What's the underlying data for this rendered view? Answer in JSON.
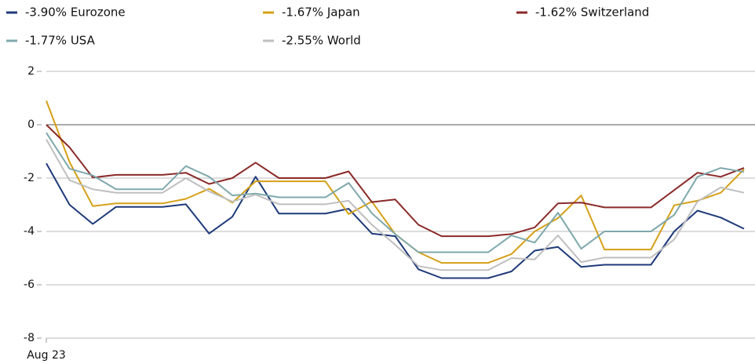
{
  "chart_data": {
    "type": "line",
    "categories": [
      "Aug 23",
      null,
      null,
      null,
      null,
      null,
      null,
      null,
      null,
      null,
      null,
      null,
      null,
      null,
      null,
      null,
      null,
      null,
      null,
      null,
      null,
      null,
      null,
      null,
      null,
      null,
      null,
      null,
      null,
      null,
      null
    ],
    "series": [
      {
        "name": "-3.90%  Eurozone",
        "color": "#1f3a7a",
        "values": [
          -1.45,
          -3.0,
          -3.72,
          -3.08,
          -3.08,
          -3.08,
          -2.98,
          -4.08,
          -3.45,
          -1.95,
          -3.33,
          -3.33,
          -3.33,
          -3.15,
          -4.08,
          -4.18,
          -5.42,
          -5.75,
          -5.75,
          -5.75,
          -5.5,
          -4.72,
          -4.58,
          -5.33,
          -5.25,
          -5.25,
          -5.25,
          -4.0,
          -3.22,
          -3.48,
          -3.9
        ]
      },
      {
        "name": "-1.67%  Japan",
        "color": "#d4a017",
        "values": [
          0.9,
          -1.4,
          -3.05,
          -2.95,
          -2.95,
          -2.95,
          -2.78,
          -2.4,
          -2.92,
          -2.12,
          -2.12,
          -2.12,
          -2.12,
          -3.35,
          -2.88,
          -4.1,
          -4.78,
          -5.18,
          -5.18,
          -5.18,
          -4.85,
          -4.0,
          -3.5,
          -2.65,
          -4.68,
          -4.68,
          -4.68,
          -3.02,
          -2.85,
          -2.55,
          -1.67
        ]
      },
      {
        "name": "-1.62%  Switzerland",
        "color": "#8b2a2a",
        "values": [
          0,
          -0.85,
          -1.98,
          -1.88,
          -1.88,
          -1.88,
          -1.8,
          -2.22,
          -2.0,
          -1.42,
          -2.0,
          -2.0,
          -2.0,
          -1.75,
          -2.9,
          -2.8,
          -3.75,
          -4.18,
          -4.18,
          -4.18,
          -4.1,
          -3.85,
          -2.95,
          -2.92,
          -3.1,
          -3.1,
          -3.1,
          -2.45,
          -1.8,
          -1.95,
          -1.62
        ]
      },
      {
        "name": "-1.77%  USA",
        "color": "#7fa8ac",
        "values": [
          -0.3,
          -1.65,
          -1.9,
          -2.42,
          -2.42,
          -2.42,
          -1.55,
          -1.95,
          -2.65,
          -2.58,
          -2.72,
          -2.72,
          -2.72,
          -2.18,
          -3.32,
          -4.1,
          -4.78,
          -4.78,
          -4.78,
          -4.78,
          -4.15,
          -4.42,
          -3.3,
          -4.65,
          -4.0,
          -4.0,
          -4.0,
          -3.38,
          -1.95,
          -1.62,
          -1.77
        ]
      },
      {
        "name": "-2.55%  World",
        "color": "#c0bfbf",
        "values": [
          -0.55,
          -2.08,
          -2.42,
          -2.55,
          -2.55,
          -2.55,
          -2.0,
          -2.5,
          -2.88,
          -2.62,
          -2.98,
          -2.98,
          -2.98,
          -2.85,
          -3.75,
          -4.5,
          -5.3,
          -5.45,
          -5.45,
          -5.45,
          -5.0,
          -5.05,
          -4.15,
          -5.15,
          -4.98,
          -4.98,
          -4.98,
          -4.3,
          -2.88,
          -2.35,
          -2.55
        ]
      }
    ],
    "ylim": [
      -8,
      2
    ],
    "yticks": [
      -8,
      -6,
      -4,
      -2,
      0,
      2
    ],
    "grid": true
  }
}
